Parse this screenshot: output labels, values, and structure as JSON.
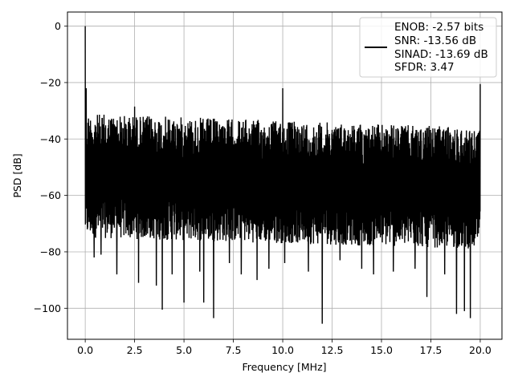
{
  "chart_data": {
    "type": "line",
    "xlabel": "Frequency [MHz]",
    "ylabel": "PSD [dB]",
    "xlim": [
      -0.9,
      21.1
    ],
    "ylim": [
      -111,
      5
    ],
    "xticks": [
      0.0,
      2.5,
      5.0,
      7.5,
      10.0,
      12.5,
      15.0,
      17.5,
      20.0
    ],
    "xtick_labels": [
      "0.0",
      "2.5",
      "5.0",
      "7.5",
      "10.0",
      "12.5",
      "15.0",
      "17.5",
      "20.0"
    ],
    "yticks": [
      0,
      -20,
      -40,
      -60,
      -80,
      -100
    ],
    "ytick_labels": [
      "0",
      "−20",
      "−40",
      "−60",
      "−80",
      "−100"
    ],
    "grid": true,
    "legend_position": "top-right",
    "series": [
      {
        "color": "#000000",
        "noise_band": {
          "x_range": [
            0.0,
            20.0
          ],
          "upper_start": -31,
          "upper_end": -36,
          "lower_start": -75,
          "lower_end": -79
        },
        "spikes": [
          {
            "x": 0.0,
            "y": 0
          },
          {
            "x": 0.05,
            "y": -22
          },
          {
            "x": 2.5,
            "y": -28.5
          },
          {
            "x": 5.0,
            "y": -29.5
          },
          {
            "x": 10.0,
            "y": -22
          },
          {
            "x": 20.0,
            "y": -20.5
          }
        ],
        "dips": [
          {
            "x": 0.45,
            "y": -82
          },
          {
            "x": 0.8,
            "y": -81
          },
          {
            "x": 1.6,
            "y": -88
          },
          {
            "x": 2.7,
            "y": -91
          },
          {
            "x": 3.6,
            "y": -92
          },
          {
            "x": 3.9,
            "y": -100.5
          },
          {
            "x": 4.4,
            "y": -88
          },
          {
            "x": 5.0,
            "y": -98
          },
          {
            "x": 5.8,
            "y": -87
          },
          {
            "x": 6.0,
            "y": -98
          },
          {
            "x": 6.5,
            "y": -103.5
          },
          {
            "x": 7.3,
            "y": -84
          },
          {
            "x": 7.9,
            "y": -88
          },
          {
            "x": 8.7,
            "y": -90
          },
          {
            "x": 9.3,
            "y": -86
          },
          {
            "x": 10.1,
            "y": -84
          },
          {
            "x": 11.3,
            "y": -87
          },
          {
            "x": 12.0,
            "y": -105.5
          },
          {
            "x": 12.9,
            "y": -83
          },
          {
            "x": 14.0,
            "y": -86
          },
          {
            "x": 14.6,
            "y": -88
          },
          {
            "x": 15.6,
            "y": -87
          },
          {
            "x": 16.7,
            "y": -86
          },
          {
            "x": 17.3,
            "y": -96
          },
          {
            "x": 18.2,
            "y": -88
          },
          {
            "x": 18.8,
            "y": -102
          },
          {
            "x": 19.2,
            "y": -101
          },
          {
            "x": 19.5,
            "y": -103.5
          }
        ]
      }
    ],
    "legend": {
      "lines": [
        "ENOB: -2.57 bits",
        "SNR: -13.56 dB",
        "SINAD: -13.69 dB",
        "SFDR: 3.47"
      ]
    }
  }
}
